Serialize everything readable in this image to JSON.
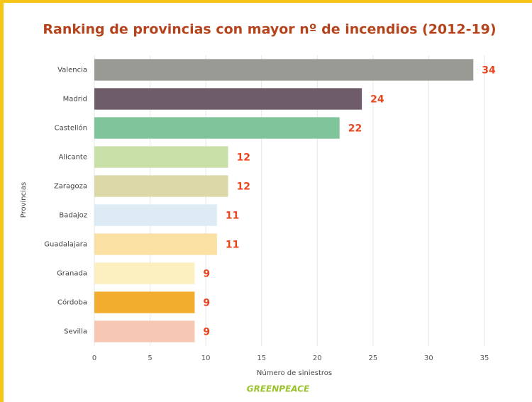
{
  "chart_data": {
    "type": "barh",
    "title": "Ranking de provincias con mayor nº de incendios (2012-19)",
    "categories": [
      "Valencia",
      "Madrid",
      "Castellón",
      "Alicante",
      "Zaragoza",
      "Badajoz",
      "Guadalajara",
      "Granada",
      "Córdoba",
      "Sevilla"
    ],
    "values": [
      34,
      24,
      22,
      12,
      12,
      11,
      11,
      9,
      9,
      9
    ],
    "colors": [
      "#999a94",
      "#6e5c6a",
      "#7fc49a",
      "#c8e0a8",
      "#dcd8a8",
      "#dcebf4",
      "#fbe0a4",
      "#fcefc0",
      "#f2ad2e",
      "#f6c7b2"
    ],
    "xlim": [
      0,
      35
    ],
    "xticks": [
      0,
      5,
      10,
      15,
      20,
      25,
      30,
      35
    ],
    "xlabel": "Número de siniestros",
    "ylabel": "Provincias",
    "source": "GREENPEACE",
    "grid": true
  }
}
